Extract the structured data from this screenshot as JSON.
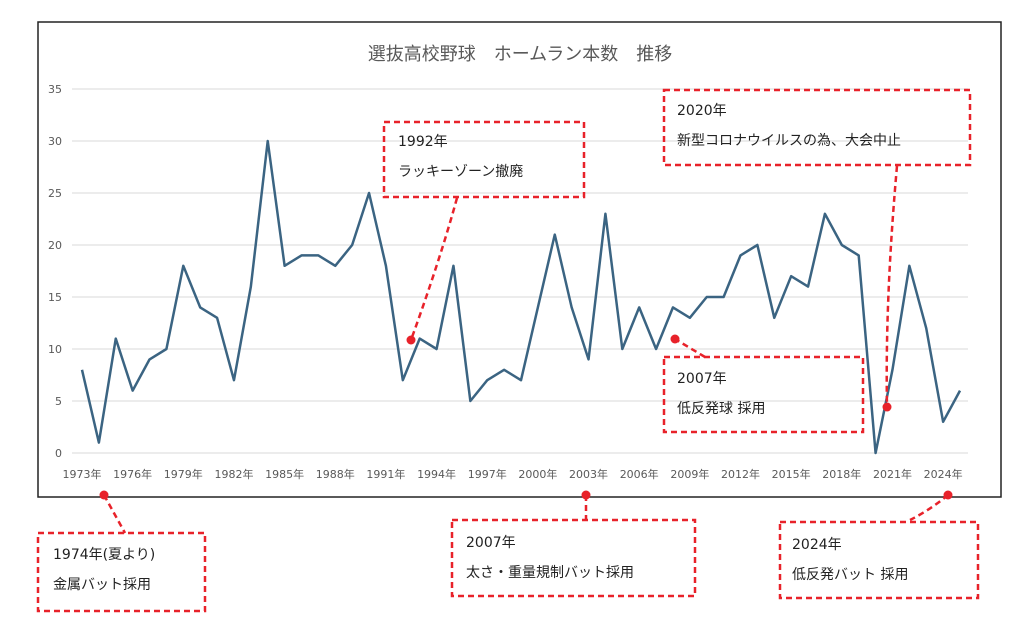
{
  "chart_data": {
    "type": "line",
    "title": "選抜高校野球　ホームラン本数　推移",
    "x": [
      1973,
      1974,
      1975,
      1976,
      1977,
      1978,
      1979,
      1980,
      1981,
      1982,
      1983,
      1984,
      1985,
      1986,
      1987,
      1988,
      1989,
      1990,
      1991,
      1992,
      1993,
      1994,
      1995,
      1996,
      1997,
      1998,
      1999,
      2000,
      2001,
      2002,
      2003,
      2004,
      2005,
      2006,
      2007,
      2008,
      2009,
      2010,
      2011,
      2012,
      2013,
      2014,
      2015,
      2016,
      2017,
      2018,
      2019,
      2020,
      2021,
      2022,
      2023,
      2024,
      2025
    ],
    "values": [
      8,
      1,
      11,
      6,
      9,
      10,
      18,
      14,
      13,
      7,
      16,
      30,
      18,
      19,
      19,
      18,
      20,
      25,
      18,
      7,
      11,
      10,
      18,
      5,
      7,
      8,
      7,
      14,
      21,
      14,
      9,
      23,
      10,
      14,
      10,
      14,
      13,
      15,
      15,
      19,
      20,
      13,
      17,
      16,
      23,
      20,
      19,
      0,
      8,
      18,
      12,
      3,
      6
    ],
    "xticks": [
      "1973年",
      "1976年",
      "1979年",
      "1982年",
      "1985年",
      "1988年",
      "1991年",
      "1994年",
      "1997年",
      "2000年",
      "2003年",
      "2006年",
      "2009年",
      "2012年",
      "2015年",
      "2018年",
      "2021年",
      "2024年"
    ],
    "yticks": [
      "0",
      "5",
      "10",
      "15",
      "20",
      "25",
      "30",
      "35"
    ],
    "ylim": [
      0,
      35
    ],
    "grid": true,
    "line_color": "#3b6482"
  },
  "annotations": [
    {
      "line1": "1992年",
      "line2": "ラッキーゾーン撤廃"
    },
    {
      "line1": "2020年",
      "line2": "新型コロナウイルスの為、大会中止"
    },
    {
      "line1": "2007年",
      "line2": "低反発球 採用"
    },
    {
      "line1": "1974年(夏より)",
      "line2": "金属バット採用"
    },
    {
      "line1": "2007年",
      "line2": "太さ・重量規制バット採用"
    },
    {
      "line1": "2024年",
      "line2": "低反発バット 採用"
    }
  ],
  "colors": {
    "annotation": "#e8222a",
    "grid": "#d9d9d9",
    "text": "#595959"
  }
}
